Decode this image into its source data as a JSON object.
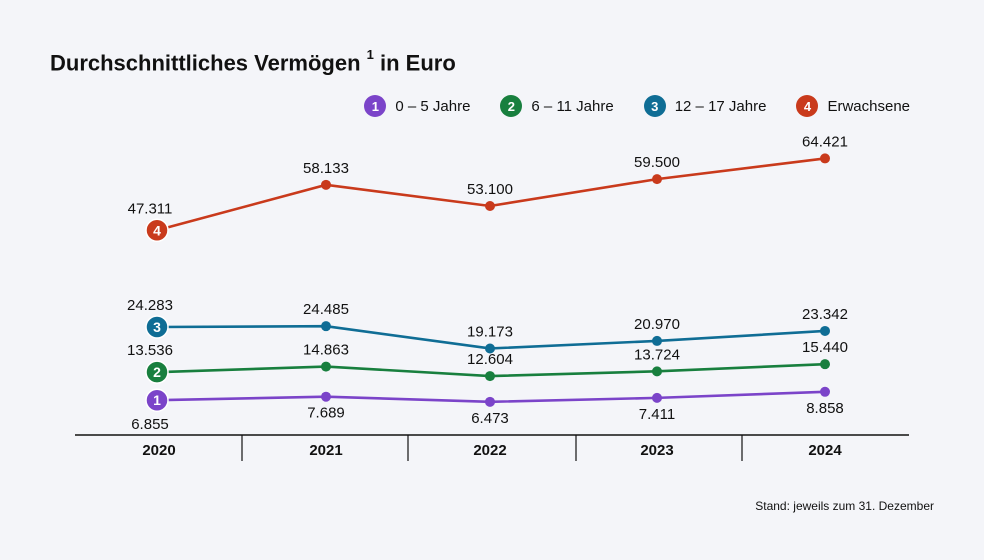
{
  "title": "Durchschnittliches Vermögen",
  "title_sup": "1",
  "title_suffix": "in Euro",
  "note": "Stand: jeweils zum 31. Dezember",
  "chart_data": {
    "type": "line",
    "title": "Durchschnittliches Vermögen 1 in Euro",
    "categories": [
      "2020",
      "2021",
      "2022",
      "2023",
      "2024"
    ],
    "legend_position": "top-right",
    "grid": false,
    "series": [
      {
        "id": "1",
        "name": "0 – 5 Jahre",
        "color": "#7b44c9",
        "values": [
          6855,
          7689,
          6473,
          7411,
          8858
        ],
        "labels": [
          "6.855",
          "7.689",
          "6.473",
          "7.411",
          "8.858"
        ]
      },
      {
        "id": "2",
        "name": "6 – 11 Jahre",
        "color": "#187f3e",
        "values": [
          13536,
          14863,
          12604,
          13724,
          15440
        ],
        "labels": [
          "13.536",
          "14.863",
          "12.604",
          "13.724",
          "15.440"
        ]
      },
      {
        "id": "3",
        "name": "12 – 17 Jahre",
        "color": "#0f6d95",
        "values": [
          24283,
          24485,
          19173,
          20970,
          23342
        ],
        "labels": [
          "24.283",
          "24.485",
          "19.173",
          "20.970",
          "23.342"
        ]
      },
      {
        "id": "4",
        "name": "Erwachsene",
        "color": "#c93a1c",
        "values": [
          47311,
          58133,
          53100,
          59500,
          64421
        ],
        "labels": [
          "47.311",
          "58.133",
          "53.100",
          "59.500",
          "64.421"
        ]
      }
    ]
  }
}
